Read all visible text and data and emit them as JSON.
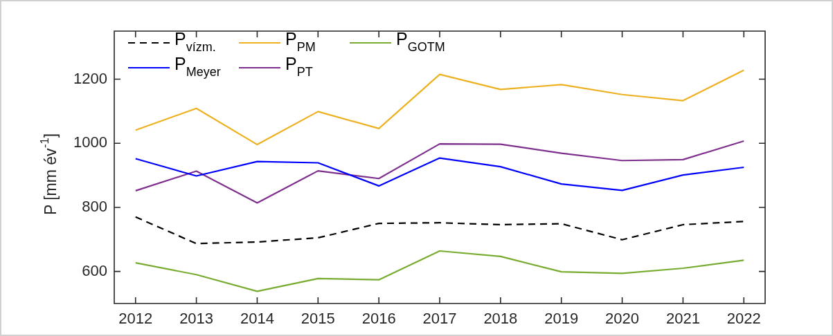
{
  "chart_data": {
    "type": "line",
    "ylabel": "P [mm év$^{-1}$]",
    "x": [
      2012,
      2013,
      2014,
      2015,
      2016,
      2017,
      2018,
      2019,
      2020,
      2021,
      2022
    ],
    "xlim": [
      2011.65,
      2022.35
    ],
    "xticks": [
      2012,
      2013,
      2014,
      2015,
      2016,
      2017,
      2018,
      2019,
      2020,
      2021,
      2022
    ],
    "ylim": [
      500,
      1350
    ],
    "yticks": [
      600,
      800,
      1000,
      1200
    ],
    "grid": false,
    "legend": "top left",
    "marker": "none",
    "series": [
      {
        "name": "P$_{vízm.}$",
        "color": "#000000",
        "line_style": "dashed",
        "values": [
          770,
          687,
          692,
          705,
          750,
          752,
          746,
          749,
          699,
          746,
          756
        ]
      },
      {
        "name": "P$_{PM}$",
        "color": "#edb120",
        "values": [
          1041,
          1109,
          996,
          1099,
          1046,
          1215,
          1168,
          1183,
          1152,
          1133,
          1228
        ]
      },
      {
        "name": "P$_{GOTM}$",
        "color": "#77ac30",
        "values": [
          627,
          590,
          538,
          578,
          574,
          664,
          647,
          599,
          594,
          610,
          635
        ]
      },
      {
        "name": "P$_{Meyer}$",
        "color": "#0000ff",
        "values": [
          952,
          898,
          943,
          939,
          867,
          954,
          927,
          873,
          853,
          901,
          925
        ]
      },
      {
        "name": "P$_{PT}$",
        "color": "#7e2f8e",
        "values": [
          852,
          913,
          814,
          914,
          890,
          998,
          997,
          969,
          946,
          949,
          1007
        ]
      }
    ]
  }
}
